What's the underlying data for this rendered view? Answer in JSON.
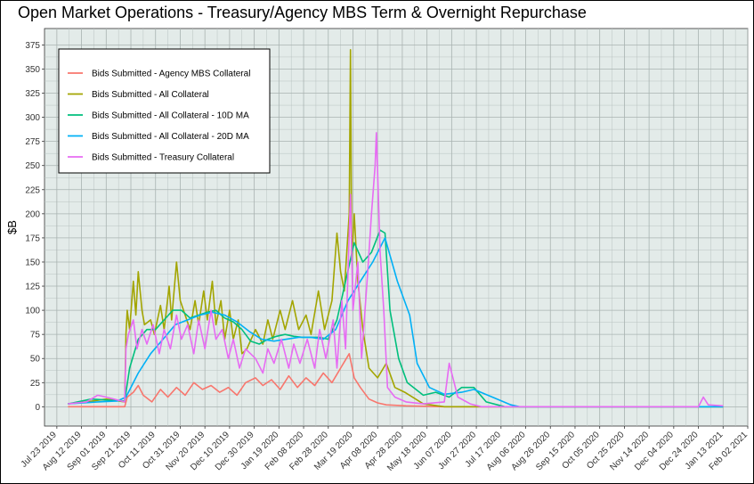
{
  "chart_data": {
    "type": "line",
    "title": "Open Market Operations - Treasury/Agency MBS Term & Overnight Repurchase",
    "xlabel": "",
    "ylabel": "$B",
    "ylim": [
      -20,
      392
    ],
    "xlim": [
      "2019-07-13",
      "2021-02-02"
    ],
    "yticks": [
      0,
      25,
      50,
      75,
      100,
      125,
      150,
      175,
      200,
      225,
      250,
      275,
      300,
      325,
      350,
      375
    ],
    "xticks": [
      "2019-07-23",
      "2019-08-12",
      "2019-09-01",
      "2019-09-21",
      "2019-10-11",
      "2019-10-31",
      "2019-11-20",
      "2019-12-10",
      "2019-12-30",
      "2020-01-19",
      "2020-02-08",
      "2020-02-28",
      "2020-03-19",
      "2020-04-08",
      "2020-04-28",
      "2020-05-18",
      "2020-06-07",
      "2020-06-27",
      "2020-07-17",
      "2020-08-06",
      "2020-08-26",
      "2020-09-15",
      "2020-10-05",
      "2020-10-25",
      "2020-11-14",
      "2020-12-04",
      "2020-12-24",
      "2021-01-13",
      "2021-02-02"
    ],
    "xtick_labels": [
      "Jul 23 2019",
      "Aug 12 2019",
      "Sep 01 2019",
      "Sep 21 2019",
      "Oct 11 2019",
      "Oct 31 2019",
      "Nov 20 2019",
      "Dec 10 2019",
      "Dec 30 2019",
      "Jan 19 2020",
      "Feb 08 2020",
      "Feb 28 2020",
      "Mar 19 2020",
      "Apr 08 2020",
      "Apr 28 2020",
      "May 18 2020",
      "Jun 07 2020",
      "Jun 27 2020",
      "Jul 17 2020",
      "Aug 06 2020",
      "Aug 26 2020",
      "Sep 15 2020",
      "Oct 05 2020",
      "Oct 25 2020",
      "Nov 14 2020",
      "Dec 04 2020",
      "Dec 24 2020",
      "Jan 13 2021",
      "Feb 02 2021"
    ],
    "grid": true,
    "legend_position": "top-left",
    "series": [
      {
        "name": "Bids Submitted - Agency MBS Collateral",
        "color": "#F8766D",
        "points": [
          [
            "2019-08-01",
            0
          ],
          [
            "2019-09-16",
            0
          ],
          [
            "2019-09-18",
            10
          ],
          [
            "2019-09-23",
            15
          ],
          [
            "2019-09-27",
            22
          ],
          [
            "2019-10-01",
            12
          ],
          [
            "2019-10-08",
            5
          ],
          [
            "2019-10-15",
            18
          ],
          [
            "2019-10-21",
            10
          ],
          [
            "2019-10-28",
            20
          ],
          [
            "2019-11-04",
            12
          ],
          [
            "2019-11-11",
            25
          ],
          [
            "2019-11-18",
            18
          ],
          [
            "2019-11-25",
            22
          ],
          [
            "2019-12-02",
            15
          ],
          [
            "2019-12-09",
            20
          ],
          [
            "2019-12-16",
            12
          ],
          [
            "2019-12-23",
            25
          ],
          [
            "2019-12-31",
            30
          ],
          [
            "2020-01-06",
            22
          ],
          [
            "2020-01-13",
            28
          ],
          [
            "2020-01-20",
            18
          ],
          [
            "2020-01-27",
            32
          ],
          [
            "2020-02-03",
            20
          ],
          [
            "2020-02-10",
            30
          ],
          [
            "2020-02-17",
            22
          ],
          [
            "2020-02-24",
            35
          ],
          [
            "2020-03-02",
            25
          ],
          [
            "2020-03-09",
            40
          ],
          [
            "2020-03-16",
            55
          ],
          [
            "2020-03-20",
            30
          ],
          [
            "2020-03-25",
            20
          ],
          [
            "2020-04-01",
            8
          ],
          [
            "2020-04-08",
            4
          ],
          [
            "2020-04-15",
            2
          ],
          [
            "2020-05-01",
            1
          ],
          [
            "2020-06-01",
            0
          ],
          [
            "2020-07-01",
            0
          ],
          [
            "2021-01-13",
            0
          ]
        ]
      },
      {
        "name": "Bids Submitted - All Collateral",
        "color": "#A3A500",
        "points": [
          [
            "2019-08-01",
            3
          ],
          [
            "2019-08-16",
            5
          ],
          [
            "2019-09-01",
            8
          ],
          [
            "2019-09-16",
            5
          ],
          [
            "2019-09-17",
            75
          ],
          [
            "2019-09-18",
            100
          ],
          [
            "2019-09-20",
            80
          ],
          [
            "2019-09-23",
            130
          ],
          [
            "2019-09-25",
            95
          ],
          [
            "2019-09-27",
            140
          ],
          [
            "2019-09-30",
            100
          ],
          [
            "2019-10-02",
            85
          ],
          [
            "2019-10-07",
            90
          ],
          [
            "2019-10-10",
            75
          ],
          [
            "2019-10-15",
            105
          ],
          [
            "2019-10-18",
            80
          ],
          [
            "2019-10-22",
            125
          ],
          [
            "2019-10-24",
            90
          ],
          [
            "2019-10-28",
            150
          ],
          [
            "2019-10-31",
            110
          ],
          [
            "2019-11-04",
            95
          ],
          [
            "2019-11-08",
            80
          ],
          [
            "2019-11-12",
            110
          ],
          [
            "2019-11-15",
            85
          ],
          [
            "2019-11-19",
            120
          ],
          [
            "2019-11-22",
            90
          ],
          [
            "2019-11-26",
            130
          ],
          [
            "2019-11-29",
            85
          ],
          [
            "2019-12-03",
            110
          ],
          [
            "2019-12-06",
            70
          ],
          [
            "2019-12-10",
            100
          ],
          [
            "2019-12-13",
            70
          ],
          [
            "2019-12-17",
            90
          ],
          [
            "2019-12-20",
            55
          ],
          [
            "2019-12-24",
            60
          ],
          [
            "2019-12-31",
            80
          ],
          [
            "2020-01-06",
            65
          ],
          [
            "2020-01-10",
            90
          ],
          [
            "2020-01-14",
            70
          ],
          [
            "2020-01-20",
            100
          ],
          [
            "2020-01-24",
            80
          ],
          [
            "2020-01-30",
            110
          ],
          [
            "2020-02-04",
            80
          ],
          [
            "2020-02-10",
            95
          ],
          [
            "2020-02-14",
            75
          ],
          [
            "2020-02-20",
            120
          ],
          [
            "2020-02-25",
            80
          ],
          [
            "2020-03-02",
            110
          ],
          [
            "2020-03-06",
            180
          ],
          [
            "2020-03-09",
            140
          ],
          [
            "2020-03-12",
            120
          ],
          [
            "2020-03-16",
            200
          ],
          [
            "2020-03-17",
            370
          ],
          [
            "2020-03-18",
            150
          ],
          [
            "2020-03-20",
            200
          ],
          [
            "2020-03-23",
            130
          ],
          [
            "2020-03-27",
            80
          ],
          [
            "2020-04-01",
            40
          ],
          [
            "2020-04-08",
            30
          ],
          [
            "2020-04-15",
            45
          ],
          [
            "2020-04-22",
            20
          ],
          [
            "2020-04-30",
            15
          ],
          [
            "2020-05-15",
            3
          ],
          [
            "2020-06-01",
            0
          ],
          [
            "2021-01-13",
            0
          ]
        ]
      },
      {
        "name": "Bids Submitted - All Collateral - 10D MA",
        "color": "#00BF7D",
        "points": [
          [
            "2019-08-01",
            3
          ],
          [
            "2019-08-20",
            8
          ],
          [
            "2019-09-01",
            7
          ],
          [
            "2019-09-16",
            6
          ],
          [
            "2019-09-20",
            40
          ],
          [
            "2019-09-27",
            70
          ],
          [
            "2019-10-04",
            80
          ],
          [
            "2019-10-11",
            80
          ],
          [
            "2019-10-18",
            90
          ],
          [
            "2019-10-25",
            100
          ],
          [
            "2019-11-01",
            100
          ],
          [
            "2019-11-08",
            92
          ],
          [
            "2019-11-15",
            95
          ],
          [
            "2019-11-22",
            98
          ],
          [
            "2019-11-29",
            100
          ],
          [
            "2019-12-06",
            92
          ],
          [
            "2019-12-13",
            88
          ],
          [
            "2019-12-20",
            80
          ],
          [
            "2019-12-27",
            68
          ],
          [
            "2020-01-03",
            65
          ],
          [
            "2020-01-10",
            70
          ],
          [
            "2020-01-17",
            73
          ],
          [
            "2020-01-24",
            75
          ],
          [
            "2020-01-31",
            73
          ],
          [
            "2020-02-07",
            72
          ],
          [
            "2020-02-14",
            72
          ],
          [
            "2020-02-21",
            72
          ],
          [
            "2020-02-28",
            70
          ],
          [
            "2020-03-06",
            90
          ],
          [
            "2020-03-13",
            130
          ],
          [
            "2020-03-20",
            170
          ],
          [
            "2020-03-27",
            150
          ],
          [
            "2020-04-03",
            160
          ],
          [
            "2020-04-10",
            183
          ],
          [
            "2020-04-14",
            180
          ],
          [
            "2020-04-18",
            100
          ],
          [
            "2020-04-25",
            50
          ],
          [
            "2020-05-02",
            25
          ],
          [
            "2020-05-15",
            12
          ],
          [
            "2020-05-25",
            15
          ],
          [
            "2020-06-05",
            10
          ],
          [
            "2020-06-15",
            20
          ],
          [
            "2020-06-25",
            20
          ],
          [
            "2020-07-05",
            5
          ],
          [
            "2020-07-20",
            0
          ],
          [
            "2021-01-13",
            0
          ]
        ]
      },
      {
        "name": "Bids Submitted - All Collateral - 20D MA",
        "color": "#00B0F6",
        "points": [
          [
            "2019-08-01",
            3
          ],
          [
            "2019-08-25",
            5
          ],
          [
            "2019-09-10",
            6
          ],
          [
            "2019-09-17",
            10
          ],
          [
            "2019-09-27",
            35
          ],
          [
            "2019-10-07",
            55
          ],
          [
            "2019-10-17",
            70
          ],
          [
            "2019-10-27",
            85
          ],
          [
            "2019-11-06",
            90
          ],
          [
            "2019-11-16",
            95
          ],
          [
            "2019-11-26",
            98
          ],
          [
            "2019-12-06",
            95
          ],
          [
            "2019-12-16",
            88
          ],
          [
            "2019-12-26",
            78
          ],
          [
            "2020-01-05",
            70
          ],
          [
            "2020-01-15",
            68
          ],
          [
            "2020-01-25",
            70
          ],
          [
            "2020-02-04",
            72
          ],
          [
            "2020-02-14",
            72
          ],
          [
            "2020-02-24",
            70
          ],
          [
            "2020-03-05",
            80
          ],
          [
            "2020-03-15",
            110
          ],
          [
            "2020-03-25",
            130
          ],
          [
            "2020-04-04",
            150
          ],
          [
            "2020-04-14",
            175
          ],
          [
            "2020-04-24",
            130
          ],
          [
            "2020-05-04",
            95
          ],
          [
            "2020-05-10",
            45
          ],
          [
            "2020-05-20",
            20
          ],
          [
            "2020-06-01",
            13
          ],
          [
            "2020-06-15",
            15
          ],
          [
            "2020-06-25",
            18
          ],
          [
            "2020-07-10",
            10
          ],
          [
            "2020-07-25",
            2
          ],
          [
            "2020-08-01",
            0
          ],
          [
            "2021-01-13",
            0
          ]
        ]
      },
      {
        "name": "Bids Submitted - Treasury Collateral",
        "color": "#E76BF3",
        "points": [
          [
            "2019-08-01",
            3
          ],
          [
            "2019-08-16",
            5
          ],
          [
            "2019-08-25",
            12
          ],
          [
            "2019-09-01",
            10
          ],
          [
            "2019-09-16",
            5
          ],
          [
            "2019-09-17",
            60
          ],
          [
            "2019-09-19",
            75
          ],
          [
            "2019-09-23",
            90
          ],
          [
            "2019-09-26",
            60
          ],
          [
            "2019-09-30",
            80
          ],
          [
            "2019-10-04",
            65
          ],
          [
            "2019-10-09",
            85
          ],
          [
            "2019-10-14",
            55
          ],
          [
            "2019-10-18",
            80
          ],
          [
            "2019-10-23",
            60
          ],
          [
            "2019-10-28",
            95
          ],
          [
            "2019-11-01",
            70
          ],
          [
            "2019-11-06",
            85
          ],
          [
            "2019-11-11",
            55
          ],
          [
            "2019-11-15",
            90
          ],
          [
            "2019-11-20",
            60
          ],
          [
            "2019-11-25",
            100
          ],
          [
            "2019-11-29",
            70
          ],
          [
            "2019-12-04",
            80
          ],
          [
            "2019-12-09",
            50
          ],
          [
            "2019-12-13",
            70
          ],
          [
            "2019-12-18",
            40
          ],
          [
            "2019-12-23",
            60
          ],
          [
            "2019-12-31",
            50
          ],
          [
            "2020-01-06",
            35
          ],
          [
            "2020-01-10",
            60
          ],
          [
            "2020-01-15",
            45
          ],
          [
            "2020-01-21",
            70
          ],
          [
            "2020-01-27",
            40
          ],
          [
            "2020-01-31",
            65
          ],
          [
            "2020-02-05",
            45
          ],
          [
            "2020-02-11",
            70
          ],
          [
            "2020-02-17",
            40
          ],
          [
            "2020-02-21",
            80
          ],
          [
            "2020-02-26",
            50
          ],
          [
            "2020-03-03",
            90
          ],
          [
            "2020-03-06",
            40
          ],
          [
            "2020-03-10",
            110
          ],
          [
            "2020-03-13",
            60
          ],
          [
            "2020-03-17",
            220
          ],
          [
            "2020-03-19",
            100
          ],
          [
            "2020-03-23",
            150
          ],
          [
            "2020-03-26",
            50
          ],
          [
            "2020-03-31",
            140
          ],
          [
            "2020-04-03",
            200
          ],
          [
            "2020-04-06",
            250
          ],
          [
            "2020-04-07",
            284
          ],
          [
            "2020-04-10",
            160
          ],
          [
            "2020-04-13",
            100
          ],
          [
            "2020-04-16",
            20
          ],
          [
            "2020-04-22",
            10
          ],
          [
            "2020-05-01",
            5
          ],
          [
            "2020-05-15",
            3
          ],
          [
            "2020-06-01",
            5
          ],
          [
            "2020-06-05",
            45
          ],
          [
            "2020-06-08",
            30
          ],
          [
            "2020-06-12",
            10
          ],
          [
            "2020-06-22",
            3
          ],
          [
            "2020-07-01",
            0
          ],
          [
            "2020-12-24",
            0
          ],
          [
            "2020-12-28",
            10
          ],
          [
            "2021-01-01",
            2
          ],
          [
            "2021-01-13",
            1
          ]
        ]
      }
    ]
  }
}
